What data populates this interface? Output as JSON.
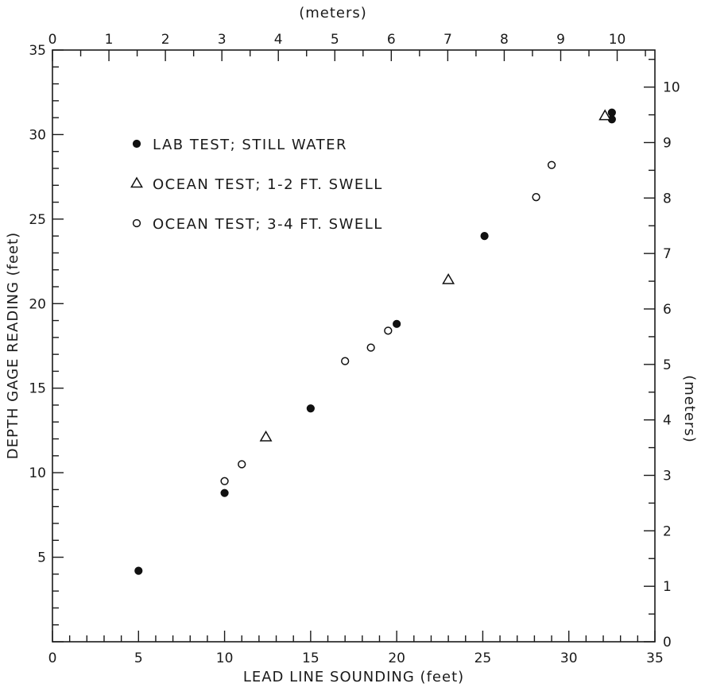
{
  "chart_data": {
    "type": "scatter",
    "title": "",
    "xlabel": "LEAD LINE SOUNDING (feet)",
    "ylabel": "DEPTH GAGE READING (feet)",
    "x2label": "(meters)",
    "y2label": "(meters)",
    "xlim": [
      0,
      35
    ],
    "ylim": [
      0,
      35
    ],
    "x2lim": [
      0,
      10.668
    ],
    "y2lim": [
      0,
      10.668
    ],
    "x_ticks": [
      0,
      5,
      10,
      15,
      20,
      25,
      30,
      35
    ],
    "x_tick_labels": [
      "0",
      "5",
      "10",
      "15",
      "20",
      "25",
      "30",
      "35"
    ],
    "y_ticks": [
      5,
      10,
      15,
      20,
      25,
      30,
      35
    ],
    "y_tick_labels": [
      "5",
      "10",
      "15",
      "20",
      "25",
      "30",
      "35"
    ],
    "x2_ticks": [
      0,
      1,
      2,
      3,
      4,
      5,
      6,
      7,
      8,
      9,
      10
    ],
    "x2_tick_labels": [
      "0",
      "1",
      "2",
      "3",
      "4",
      "5",
      "6",
      "7",
      "8",
      "9",
      "10"
    ],
    "y2_ticks": [
      0,
      1,
      2,
      3,
      4,
      5,
      6,
      7,
      8,
      9,
      10
    ],
    "y2_tick_labels": [
      "0",
      "1",
      "2",
      "3",
      "4",
      "5",
      "6",
      "7",
      "8",
      "9",
      "10"
    ],
    "grid": false,
    "legend_position": "top-left",
    "series": [
      {
        "name": "LAB TEST; STILL WATER",
        "marker": "filled-circle",
        "x": [
          5,
          10,
          15,
          20,
          25.1,
          32.5,
          32.5
        ],
        "y": [
          4.2,
          8.8,
          13.8,
          18.8,
          24,
          31.3,
          30.9
        ]
      },
      {
        "name": "OCEAN TEST; 1-2 FT. SWELL",
        "marker": "open-triangle",
        "x": [
          12.4,
          23,
          32.1
        ],
        "y": [
          12.1,
          21.4,
          31.1
        ]
      },
      {
        "name": "OCEAN TEST; 3-4 FT. SWELL",
        "marker": "open-circle",
        "x": [
          10,
          11,
          17,
          18.5,
          19.5,
          28.1,
          29
        ],
        "y": [
          9.5,
          10.5,
          16.6,
          17.4,
          18.4,
          26.3,
          28.2
        ]
      }
    ]
  }
}
